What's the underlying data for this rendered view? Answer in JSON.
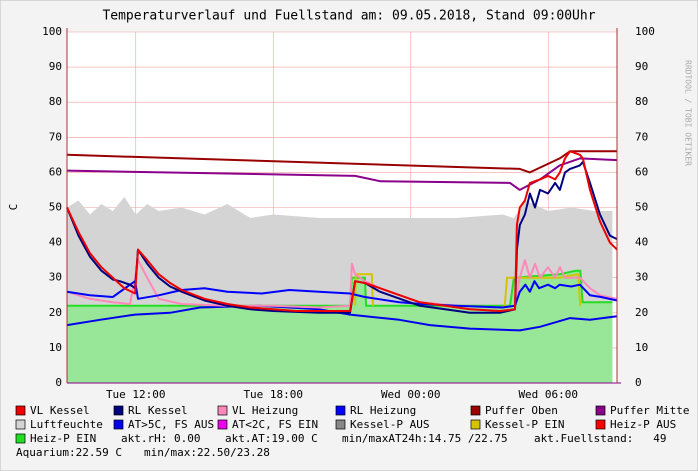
{
  "chart_data": {
    "type": "line",
    "title": "Temperaturverlauf und Fuellstand am: 09.05.2018, Stand 09:00Uhr",
    "ylabel": "C",
    "watermark": "RRDTOOL / TOBI OETIKER",
    "xlim": [
      9,
      33
    ],
    "xticks": [
      {
        "value": 12,
        "label": "Tue 12:00"
      },
      {
        "value": 18,
        "label": "Tue 18:00"
      },
      {
        "value": 24,
        "label": "Wed 00:00"
      },
      {
        "value": 30,
        "label": "Wed 06:00"
      }
    ],
    "ylim": [
      0,
      100
    ],
    "yticks": [
      0,
      10,
      20,
      30,
      40,
      50,
      60,
      70,
      80,
      90,
      100
    ],
    "grid": true,
    "series": [
      {
        "name": "Luftfeuchte",
        "color": "#d4d4d4",
        "style": "area",
        "x": [
          9,
          9.5,
          10,
          10.5,
          11,
          11.5,
          12,
          12.5,
          13,
          14,
          15,
          16,
          17,
          18,
          20,
          22,
          24,
          26,
          28,
          28.5,
          29,
          30,
          31,
          32,
          32.8
        ],
        "values": [
          50,
          52,
          48,
          51,
          49,
          53,
          48,
          51,
          49,
          50,
          48,
          51,
          47,
          48,
          47,
          47,
          47,
          47,
          48,
          47,
          52,
          49,
          50,
          49,
          49
        ]
      },
      {
        "name": "Heiz-P EIN",
        "color": "#22dd22",
        "style": "area",
        "fill": "#98e698",
        "x": [
          9,
          21.35,
          21.43,
          22.0,
          22.05,
          28.33,
          28.5,
          30.5,
          31.2,
          31.4,
          31.5,
          32.8
        ],
        "values": [
          22,
          22,
          30,
          30,
          22,
          22,
          30,
          31,
          32,
          32,
          23,
          23
        ]
      },
      {
        "name": "Kessel-P EIN",
        "color": "#d4c400",
        "x": [
          21.57,
          21.6,
          22.3,
          22.35,
          25,
          28.1,
          28.2,
          30.5,
          31.3,
          31.4
        ],
        "values": [
          22,
          31,
          31,
          22,
          null,
          22,
          30,
          30,
          31,
          22
        ]
      },
      {
        "name": "AT>5C, FS AUS",
        "color": "#0000ee",
        "x": [
          9,
          10.44,
          11.97,
          13.5,
          14.8,
          17.4,
          20,
          21.35,
          23.5,
          24.84,
          26.58,
          28.76,
          29.64,
          30.95,
          31.82,
          33
        ],
        "values": [
          16.5,
          18,
          19.5,
          20,
          21.5,
          22,
          21,
          19.5,
          18,
          16.5,
          15.5,
          15,
          16,
          18.5,
          18,
          19
        ]
      },
      {
        "name": "Puffer Oben",
        "color": "#990000",
        "x": [
          9,
          28.76,
          29.2,
          30.5,
          30.95,
          33
        ],
        "values": [
          65,
          61,
          60,
          64,
          66,
          66
        ]
      },
      {
        "name": "Puffer Mitte",
        "color": "#8b008b",
        "x": [
          9,
          21.57,
          22.66,
          28.33,
          28.76,
          29.64,
          30.5,
          31.38,
          33
        ],
        "values": [
          60.5,
          59,
          57.5,
          57,
          55,
          58,
          62,
          64,
          63.5
        ]
      },
      {
        "name": "VL Heizung",
        "color": "#ff88bb",
        "x": [
          9,
          10,
          11,
          11.75,
          11.97,
          12.1,
          12.5,
          13,
          14,
          16,
          18,
          20,
          21.35,
          21.43,
          21.57,
          22,
          22.66,
          23.53,
          24.4,
          26,
          27.89,
          28.55,
          28.76,
          28.98,
          29.2,
          29.42,
          29.64,
          29.99,
          30.3,
          30.51,
          30.73,
          31.38,
          31.82,
          32.26,
          33
        ],
        "values": [
          26,
          24,
          23,
          22.5,
          30,
          35,
          30,
          24,
          22.5,
          22,
          22,
          21.5,
          22,
          34,
          31,
          29,
          27,
          25,
          23,
          22,
          21.5,
          22,
          30,
          35,
          30,
          34,
          30,
          33,
          30,
          33,
          30,
          30,
          27,
          25,
          24
        ]
      },
      {
        "name": "RL Heizung",
        "color": "#0000ff",
        "x": [
          9,
          10,
          11,
          11.75,
          11.97,
          12.1,
          13,
          14,
          15,
          16,
          17.5,
          18.7,
          20,
          21.35,
          22,
          23.5,
          24.5,
          26,
          28,
          28.55,
          28.76,
          29,
          29.2,
          29.4,
          29.6,
          29.99,
          30.3,
          30.5,
          31,
          31.38,
          31.82,
          32.3,
          33
        ],
        "values": [
          26,
          25,
          24.5,
          28,
          29,
          24,
          25,
          26.5,
          27,
          26,
          25.5,
          26.5,
          26,
          25.5,
          24.5,
          23,
          22.5,
          22,
          21.5,
          22,
          26,
          28,
          26,
          29,
          27,
          28,
          27,
          28,
          27.5,
          28,
          25,
          24.5,
          23.5
        ]
      },
      {
        "name": "RL Kessel",
        "color": "#000080",
        "x": [
          9,
          9.5,
          10,
          10.5,
          11,
          11.31,
          11.75,
          11.97,
          12.1,
          12.5,
          13,
          13.5,
          14,
          15,
          16,
          17,
          18,
          20,
          21.35,
          21.57,
          22,
          22.66,
          23.53,
          24.4,
          25.5,
          26.58,
          27.89,
          28.55,
          28.63,
          28.76,
          28.98,
          29.2,
          29.42,
          29.64,
          29.99,
          30.3,
          30.51,
          30.73,
          30.95,
          31.38,
          31.51,
          31.82,
          32.26,
          32.69,
          33
        ],
        "values": [
          50,
          42,
          36,
          32,
          29.5,
          29,
          28,
          27,
          38,
          34,
          30,
          27.5,
          26,
          23.5,
          22,
          21,
          20.5,
          20,
          20,
          29,
          28.5,
          26,
          24,
          22,
          21,
          20,
          20,
          21,
          38,
          45,
          48,
          54,
          50,
          55,
          54,
          57,
          55,
          60,
          61,
          62,
          63,
          57,
          48,
          42,
          41
        ]
      },
      {
        "name": "VL Kessel",
        "color": "#ee0000",
        "x": [
          9,
          9.5,
          10,
          10.5,
          11,
          11.5,
          11.97,
          12.1,
          12.5,
          13,
          13.5,
          14,
          15,
          16,
          17,
          18,
          19,
          20,
          21.35,
          21.57,
          22,
          22.66,
          23.53,
          24.4,
          25.5,
          26.58,
          27.89,
          28.55,
          28.63,
          28.76,
          28.98,
          29.2,
          29.64,
          29.99,
          30.3,
          30.51,
          30.73,
          30.95,
          31.38,
          31.51,
          31.82,
          32.26,
          32.69,
          33
        ],
        "values": [
          50,
          43,
          37,
          33,
          30,
          27,
          25.5,
          38,
          35,
          31,
          28.5,
          26.5,
          24,
          22.5,
          21.5,
          21,
          20.5,
          20.5,
          20.5,
          29,
          28.5,
          27,
          25,
          23,
          22,
          21,
          20.5,
          21,
          45,
          50,
          52,
          57,
          58,
          59,
          58,
          60,
          64,
          66,
          65,
          64,
          55,
          46,
          40,
          38
        ]
      },
      {
        "name": "AT<2C, FS EIN",
        "color": "#ee00ee"
      },
      {
        "name": "Kessel-P AUS",
        "color": "#888888"
      },
      {
        "name": "Heiz-P AUS",
        "color": "#ff0000"
      }
    ],
    "legend_order": [
      "VL Kessel",
      "RL Kessel",
      "VL Heizung",
      "RL Heizung",
      "Puffer Oben",
      "Puffer Mitte",
      "Luftfeuchte",
      "AT>5C, FS AUS",
      "AT<2C, FS EIN",
      "Kessel-P AUS",
      "Kessel-P EIN",
      "Heiz-P AUS",
      "Heiz-P EIN"
    ],
    "notes": [
      "akt.rH: 0.00",
      "akt.AT:19.00 C",
      "min/maxAT24h:14.75 /22.75",
      "akt.Fuellstand:   49",
      "Aquarium:22.59 C",
      "min/max:22.50/23.28"
    ]
  }
}
